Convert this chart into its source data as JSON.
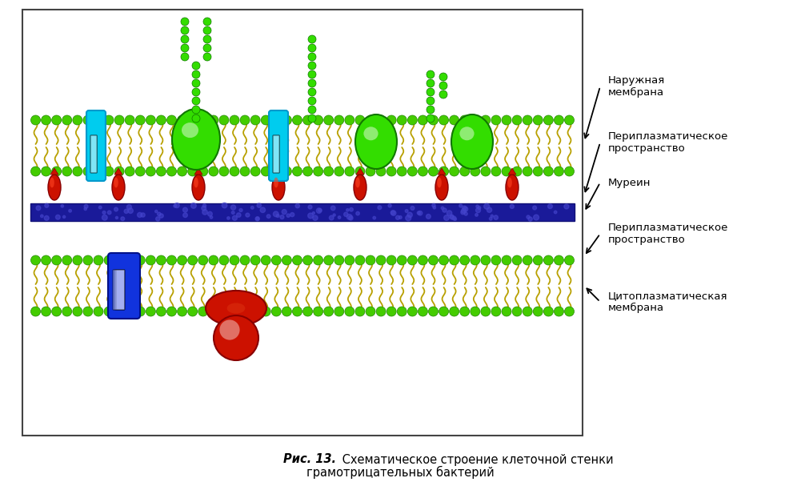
{
  "caption_bold": "Рис. 13.",
  "caption_normal": " Схематическое строение клеточной стенки\nграмотрицательных бактерий",
  "labels": {
    "outer_membrane": "Наружная\nмембрана",
    "periplasm1": "Периплазматическое\nпространство",
    "murein": "Муреин",
    "periplasm2": "Периплазматическое\nпространство",
    "cytoplasm_membrane": "Цитоплазматическая\nмембрана"
  },
  "colors": {
    "background": "#ffffff",
    "lipid_head": "#44cc00",
    "lipid_head_outline": "#228800",
    "lipid_tail": "#b8a000",
    "murein_fill": "#1a1a99",
    "murein_dot": "#4444cc",
    "cyan_protein": "#00ccff",
    "green_protein": "#33dd00",
    "red_structure": "#cc1100",
    "blue_protein": "#1133dd",
    "blue_highlight": "#aaaaff",
    "lps_bead": "#33dd00",
    "lps_bead_outline": "#117700"
  },
  "fig_width": 10.01,
  "fig_height": 6.12,
  "dpi": 100
}
